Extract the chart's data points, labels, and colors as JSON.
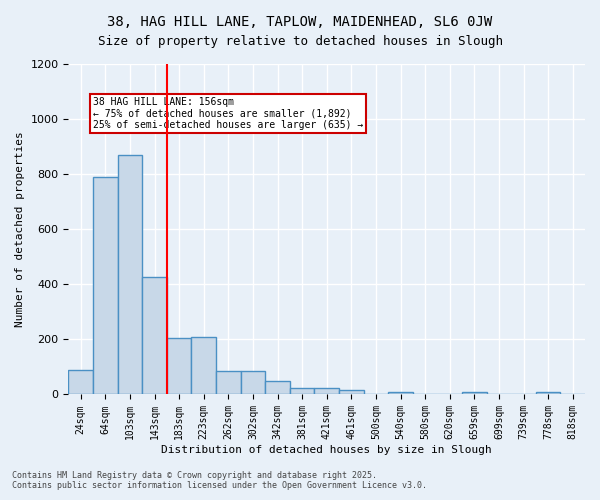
{
  "title_line1": "38, HAG HILL LANE, TAPLOW, MAIDENHEAD, SL6 0JW",
  "title_line2": "Size of property relative to detached houses in Slough",
  "xlabel": "Distribution of detached houses by size in Slough",
  "ylabel": "Number of detached properties",
  "categories": [
    "24sqm",
    "64sqm",
    "103sqm",
    "143sqm",
    "183sqm",
    "223sqm",
    "262sqm",
    "302sqm",
    "342sqm",
    "381sqm",
    "421sqm",
    "461sqm",
    "500sqm",
    "540sqm",
    "580sqm",
    "620sqm",
    "659sqm",
    "699sqm",
    "739sqm",
    "778sqm",
    "818sqm"
  ],
  "values": [
    90,
    790,
    870,
    425,
    205,
    210,
    85,
    85,
    50,
    22,
    22,
    15,
    0,
    10,
    0,
    0,
    10,
    0,
    0,
    10,
    0
  ],
  "bar_color": "#c8d8e8",
  "bar_edge_color": "#4a90c4",
  "bar_edge_width": 1.0,
  "red_line_index": 3,
  "red_line_x": 3.5,
  "annotation_text": "38 HAG HILL LANE: 156sqm\n← 75% of detached houses are smaller (1,892)\n25% of semi-detached houses are larger (635) →",
  "annotation_box_color": "#ffffff",
  "annotation_box_edge_color": "#cc0000",
  "ylim": [
    0,
    1200
  ],
  "yticks": [
    0,
    200,
    400,
    600,
    800,
    1000,
    1200
  ],
  "background_color": "#e8f0f8",
  "grid_color": "#ffffff",
  "footer_line1": "Contains HM Land Registry data © Crown copyright and database right 2025.",
  "footer_line2": "Contains public sector information licensed under the Open Government Licence v3.0."
}
